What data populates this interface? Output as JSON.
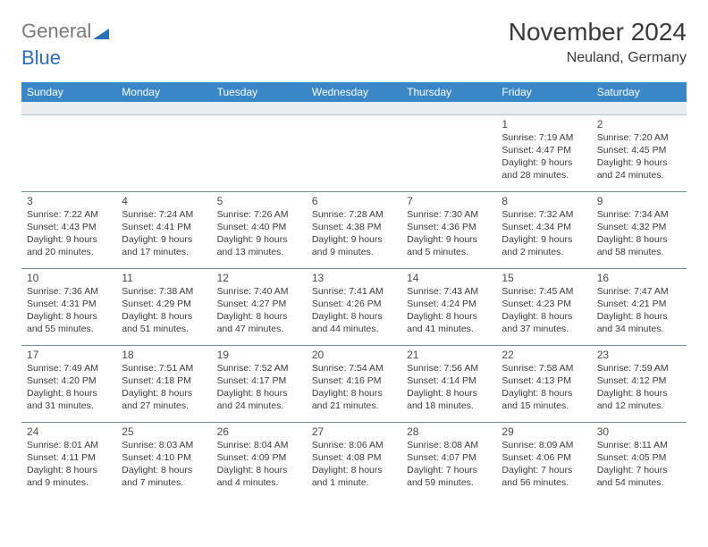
{
  "logo": {
    "gray": "General",
    "blue": "Blue"
  },
  "title": "November 2024",
  "subtitle": "Neuland, Germany",
  "colors": {
    "header_bg": "#3a87c8",
    "header_text": "#ffffff",
    "spacer_bg": "#e9edf0",
    "row_border": "#6f87a0",
    "text": "#3a3a3a",
    "logo_gray": "#7a7a7a",
    "logo_blue": "#2a6fb5"
  },
  "dayNames": [
    "Sunday",
    "Monday",
    "Tuesday",
    "Wednesday",
    "Thursday",
    "Friday",
    "Saturday"
  ],
  "weeks": [
    [
      null,
      null,
      null,
      null,
      null,
      {
        "n": "1",
        "sr": "7:19 AM",
        "ss": "4:47 PM",
        "dl": "9 hours and 28 minutes."
      },
      {
        "n": "2",
        "sr": "7:20 AM",
        "ss": "4:45 PM",
        "dl": "9 hours and 24 minutes."
      }
    ],
    [
      {
        "n": "3",
        "sr": "7:22 AM",
        "ss": "4:43 PM",
        "dl": "9 hours and 20 minutes."
      },
      {
        "n": "4",
        "sr": "7:24 AM",
        "ss": "4:41 PM",
        "dl": "9 hours and 17 minutes."
      },
      {
        "n": "5",
        "sr": "7:26 AM",
        "ss": "4:40 PM",
        "dl": "9 hours and 13 minutes."
      },
      {
        "n": "6",
        "sr": "7:28 AM",
        "ss": "4:38 PM",
        "dl": "9 hours and 9 minutes."
      },
      {
        "n": "7",
        "sr": "7:30 AM",
        "ss": "4:36 PM",
        "dl": "9 hours and 5 minutes."
      },
      {
        "n": "8",
        "sr": "7:32 AM",
        "ss": "4:34 PM",
        "dl": "9 hours and 2 minutes."
      },
      {
        "n": "9",
        "sr": "7:34 AM",
        "ss": "4:32 PM",
        "dl": "8 hours and 58 minutes."
      }
    ],
    [
      {
        "n": "10",
        "sr": "7:36 AM",
        "ss": "4:31 PM",
        "dl": "8 hours and 55 minutes."
      },
      {
        "n": "11",
        "sr": "7:38 AM",
        "ss": "4:29 PM",
        "dl": "8 hours and 51 minutes."
      },
      {
        "n": "12",
        "sr": "7:40 AM",
        "ss": "4:27 PM",
        "dl": "8 hours and 47 minutes."
      },
      {
        "n": "13",
        "sr": "7:41 AM",
        "ss": "4:26 PM",
        "dl": "8 hours and 44 minutes."
      },
      {
        "n": "14",
        "sr": "7:43 AM",
        "ss": "4:24 PM",
        "dl": "8 hours and 41 minutes."
      },
      {
        "n": "15",
        "sr": "7:45 AM",
        "ss": "4:23 PM",
        "dl": "8 hours and 37 minutes."
      },
      {
        "n": "16",
        "sr": "7:47 AM",
        "ss": "4:21 PM",
        "dl": "8 hours and 34 minutes."
      }
    ],
    [
      {
        "n": "17",
        "sr": "7:49 AM",
        "ss": "4:20 PM",
        "dl": "8 hours and 31 minutes."
      },
      {
        "n": "18",
        "sr": "7:51 AM",
        "ss": "4:18 PM",
        "dl": "8 hours and 27 minutes."
      },
      {
        "n": "19",
        "sr": "7:52 AM",
        "ss": "4:17 PM",
        "dl": "8 hours and 24 minutes."
      },
      {
        "n": "20",
        "sr": "7:54 AM",
        "ss": "4:16 PM",
        "dl": "8 hours and 21 minutes."
      },
      {
        "n": "21",
        "sr": "7:56 AM",
        "ss": "4:14 PM",
        "dl": "8 hours and 18 minutes."
      },
      {
        "n": "22",
        "sr": "7:58 AM",
        "ss": "4:13 PM",
        "dl": "8 hours and 15 minutes."
      },
      {
        "n": "23",
        "sr": "7:59 AM",
        "ss": "4:12 PM",
        "dl": "8 hours and 12 minutes."
      }
    ],
    [
      {
        "n": "24",
        "sr": "8:01 AM",
        "ss": "4:11 PM",
        "dl": "8 hours and 9 minutes."
      },
      {
        "n": "25",
        "sr": "8:03 AM",
        "ss": "4:10 PM",
        "dl": "8 hours and 7 minutes."
      },
      {
        "n": "26",
        "sr": "8:04 AM",
        "ss": "4:09 PM",
        "dl": "8 hours and 4 minutes."
      },
      {
        "n": "27",
        "sr": "8:06 AM",
        "ss": "4:08 PM",
        "dl": "8 hours and 1 minute."
      },
      {
        "n": "28",
        "sr": "8:08 AM",
        "ss": "4:07 PM",
        "dl": "7 hours and 59 minutes."
      },
      {
        "n": "29",
        "sr": "8:09 AM",
        "ss": "4:06 PM",
        "dl": "7 hours and 56 minutes."
      },
      {
        "n": "30",
        "sr": "8:11 AM",
        "ss": "4:05 PM",
        "dl": "7 hours and 54 minutes."
      }
    ]
  ]
}
